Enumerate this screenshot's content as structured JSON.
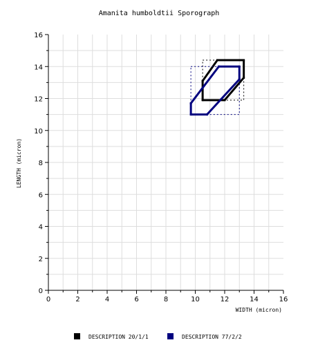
{
  "chart_data": {
    "type": "line",
    "title": "Amanita humboldtii Sporograph",
    "xlabel": "WIDTH (micron)",
    "ylabel": "LENGTH (micron)",
    "xlim": [
      0,
      16
    ],
    "ylim": [
      0,
      16
    ],
    "x_ticks": [
      "0",
      "2",
      "4",
      "6",
      "8",
      "10",
      "12",
      "14",
      "16"
    ],
    "y_ticks": [
      "0",
      "2",
      "4",
      "6",
      "8",
      "10",
      "12",
      "14",
      "16"
    ],
    "grid": true,
    "legend_position": "bottom",
    "series": [
      {
        "name": "DESCRIPTION 20/1/1",
        "color": "#000000",
        "polygon": [
          [
            10.5,
            11.9
          ],
          [
            12.0,
            11.9
          ],
          [
            13.3,
            13.3
          ],
          [
            13.3,
            14.4
          ],
          [
            11.5,
            14.4
          ],
          [
            10.5,
            13.1
          ]
        ],
        "box": {
          "xmin": 10.5,
          "xmax": 13.3,
          "ymin": 11.9,
          "ymax": 14.4
        }
      },
      {
        "name": "DESCRIPTION 77/2/2",
        "color": "#00007f",
        "polygon": [
          [
            9.7,
            11.0
          ],
          [
            10.8,
            11.0
          ],
          [
            13.0,
            13.2
          ],
          [
            13.0,
            14.0
          ],
          [
            11.6,
            14.0
          ],
          [
            9.7,
            11.7
          ]
        ],
        "box": {
          "xmin": 9.7,
          "xmax": 13.0,
          "ymin": 11.0,
          "ymax": 14.0
        }
      }
    ]
  }
}
